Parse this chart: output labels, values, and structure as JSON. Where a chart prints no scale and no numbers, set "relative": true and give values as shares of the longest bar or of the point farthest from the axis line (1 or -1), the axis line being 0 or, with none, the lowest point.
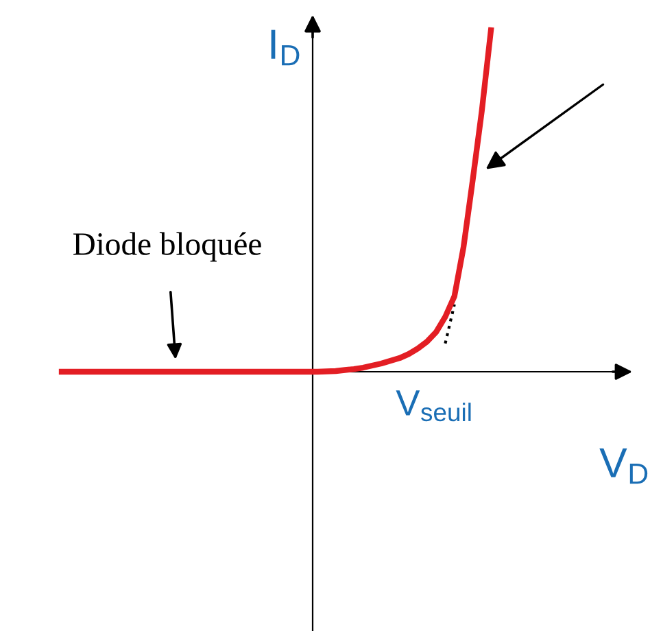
{
  "chart_data": {
    "type": "line",
    "relative": true,
    "xlabel": "V$_{D}$",
    "ylabel": "I$_{D}$",
    "categories": [
      null,
      null,
      null,
      null,
      null,
      null,
      null,
      null,
      null,
      null,
      null,
      null,
      null,
      null,
      null,
      null,
      null,
      null,
      null,
      null,
      null,
      null,
      null,
      null,
      null,
      null,
      null,
      null,
      null,
      null,
      null,
      null,
      null,
      null,
      null,
      null,
      null,
      null,
      null,
      null,
      null,
      null,
      null,
      null,
      null,
      null,
      null,
      null
    ],
    "series": [
      {
        "color": "#e31e24",
        "line_style": "solid",
        "values": [
          0,
          0,
          0,
          0,
          0,
          0,
          0,
          0,
          0,
          0,
          0,
          0,
          0,
          0,
          0,
          0,
          0,
          0,
          0,
          0,
          0,
          0,
          0,
          0,
          0,
          0,
          0,
          0,
          0,
          0.001,
          0.002,
          0.005,
          0.008,
          0.012,
          0.018,
          0.024,
          0.032,
          0.04,
          0.052,
          0.068,
          0.088,
          0.116,
          0.161,
          0.221,
          0.365,
          0.56,
          0.763,
          1
        ]
      },
      {
        "color": "#000000",
        "line_style": "dotted",
        "values": [
          null,
          null,
          null,
          null,
          null,
          null,
          null,
          null,
          null,
          null,
          null,
          null,
          null,
          null,
          null,
          null,
          null,
          null,
          null,
          null,
          null,
          null,
          null,
          null,
          null,
          null,
          null,
          null,
          null,
          null,
          null,
          null,
          null,
          null,
          null,
          null,
          null,
          null,
          null,
          null,
          null,
          null,
          0.083,
          0.197,
          null,
          null,
          null,
          null
        ]
      }
    ],
    "annotations": [
      "Diode bloquée",
      "V$_{seuil}$"
    ],
    "grid": false,
    "legend": false,
    "marker": "none"
  }
}
